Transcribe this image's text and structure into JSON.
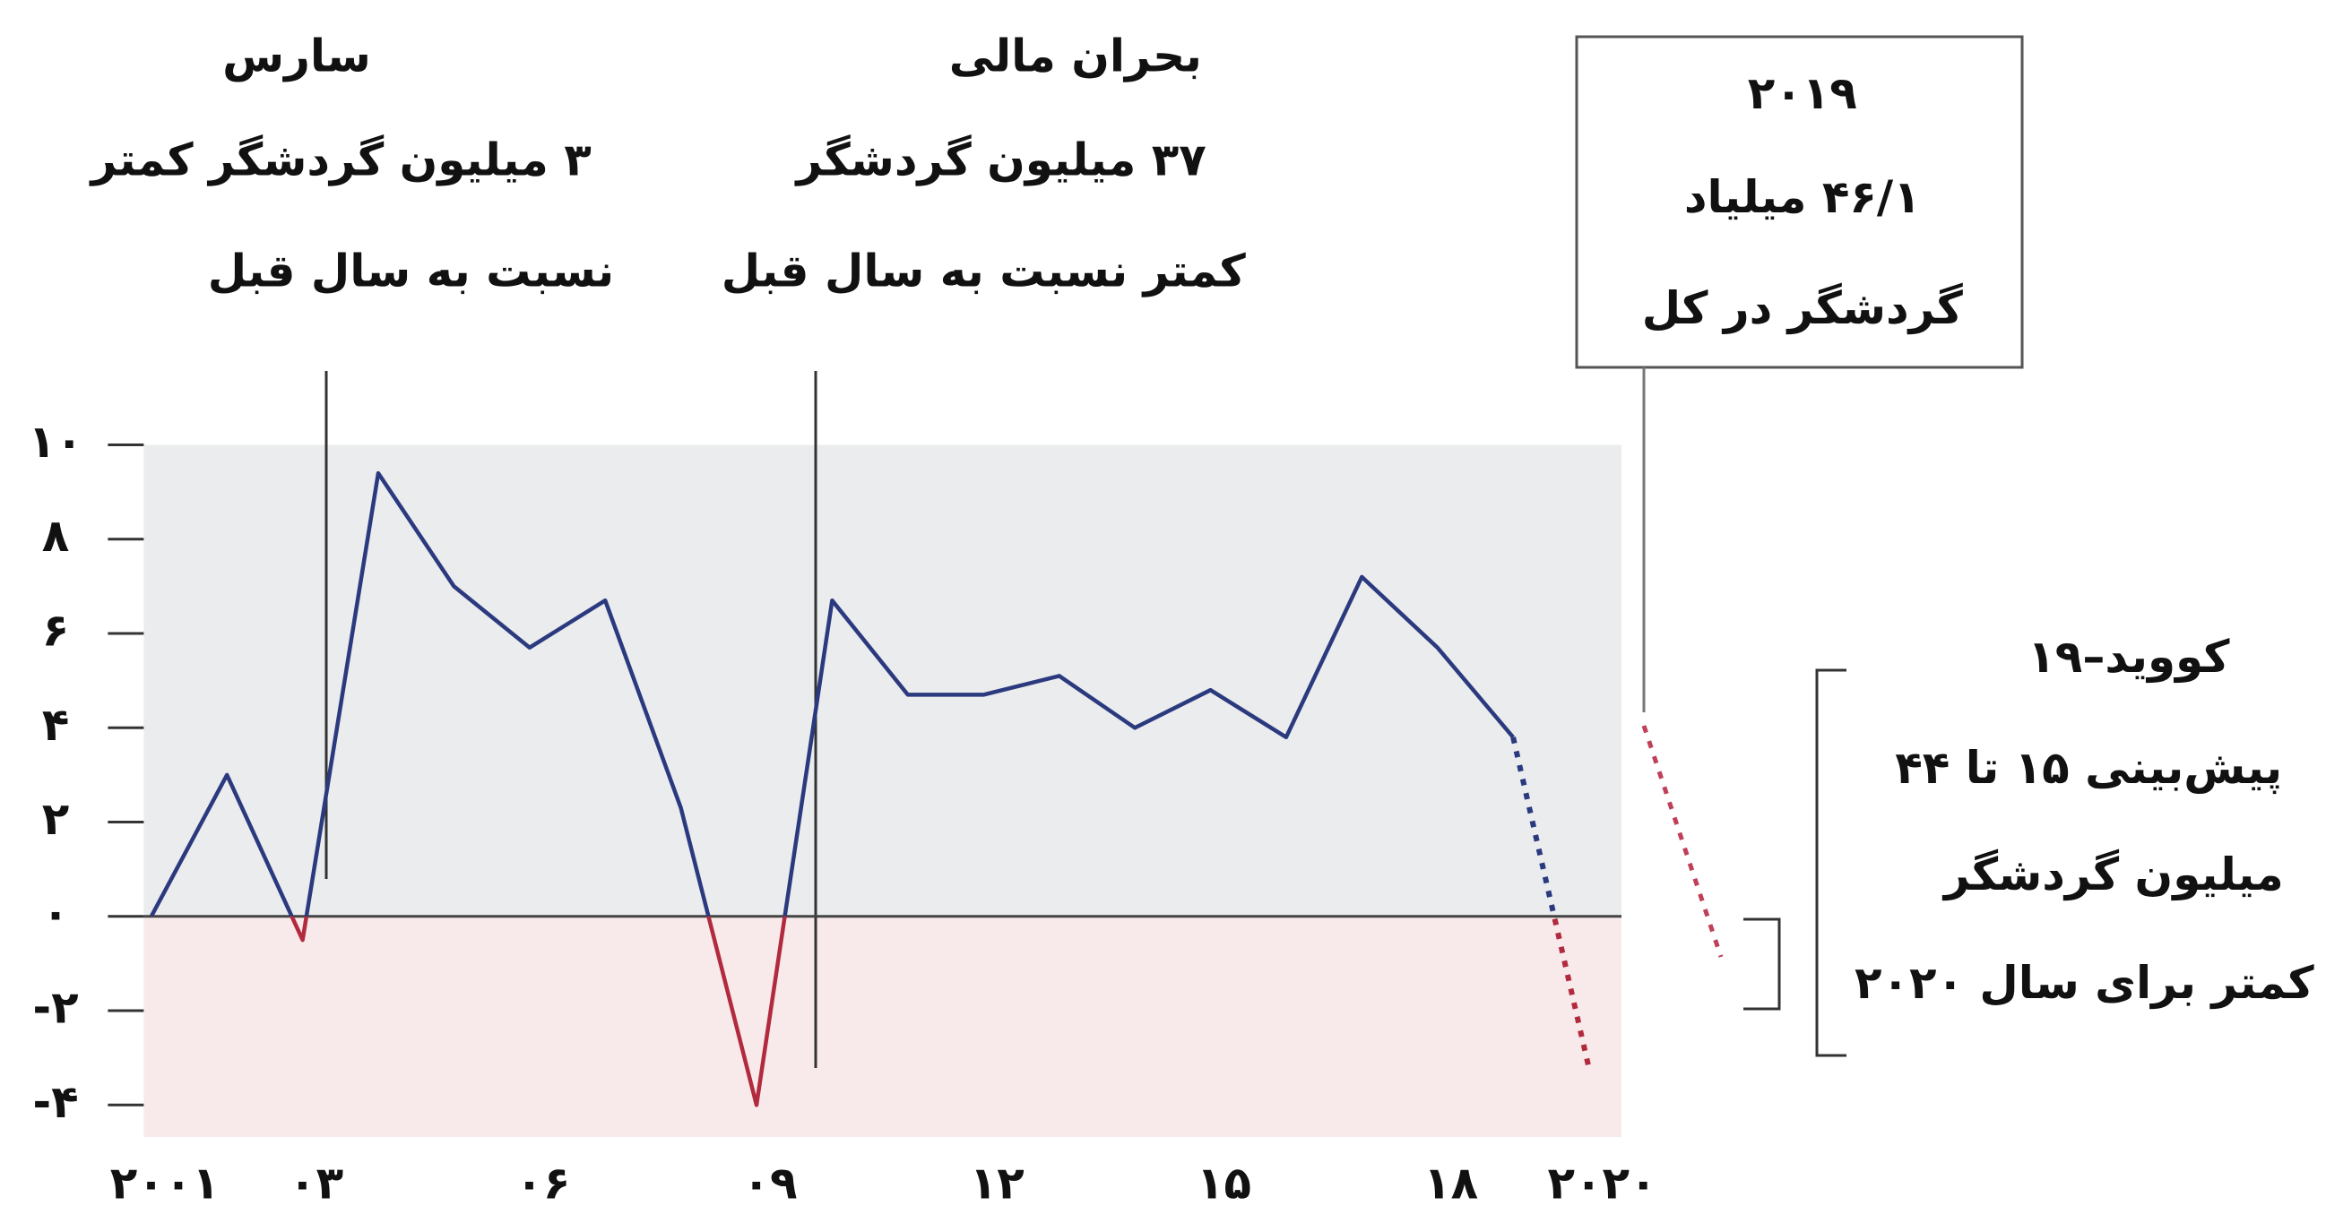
{
  "chart_data": {
    "type": "line",
    "x": [
      2001,
      2002,
      2003,
      2004,
      2005,
      2006,
      2007,
      2008,
      2009,
      2010,
      2011,
      2012,
      2013,
      2014,
      2015,
      2016,
      2017,
      2018,
      2019,
      2020
    ],
    "series": [
      {
        "color": "#2b3a7f",
        "values": [
          0,
          3.0,
          -0.5,
          9.4,
          7.0,
          5.7,
          6.7,
          2.3,
          -4,
          6.7,
          4.7,
          4.7,
          5.1,
          4.0,
          4.8,
          3.8,
          7.2,
          5.7,
          3.8,
          null
        ]
      },
      {
        "color": "#2b3a7f",
        "dashed": true,
        "values": [
          null,
          null,
          null,
          null,
          null,
          null,
          null,
          null,
          null,
          null,
          null,
          null,
          null,
          null,
          null,
          null,
          null,
          null,
          3.8,
          -3.2
        ]
      }
    ],
    "negative_color": "#b22a3e",
    "xlim": [
      2000.9,
      2020.6
    ],
    "xticks": [
      {
        "value": 2001,
        "label": "۲۰۰۱"
      },
      {
        "value": 2003,
        "label": "۰۳"
      },
      {
        "value": 2006,
        "label": "۰۶"
      },
      {
        "value": 2009,
        "label": "۰۹"
      },
      {
        "value": 2012,
        "label": "۱۲"
      },
      {
        "value": 2015,
        "label": "۱۵"
      },
      {
        "value": 2018,
        "label": "۱۸"
      },
      {
        "value": 2020,
        "label": "۲۰۲۰"
      }
    ],
    "ylim": [
      -4.3,
      10
    ],
    "yticks": [
      {
        "value": 10,
        "label": "۱۰"
      },
      {
        "value": 8,
        "label": "۸"
      },
      {
        "value": 6,
        "label": "۶"
      },
      {
        "value": 4,
        "label": "۴"
      },
      {
        "value": 2,
        "label": "۲"
      },
      {
        "value": 0,
        "label": "۰"
      },
      {
        "value": -2,
        "label": "-۲"
      },
      {
        "value": -4,
        "label": "-۴"
      }
    ],
    "annotations": [
      {
        "lines": [
          "سارس",
          "۳ میلیون گردشگر کمتر",
          "نسبت به سال قبل"
        ]
      },
      {
        "lines": [
          "بحران مالی",
          "۳۷ میلیون گردشگر",
          "کمتر نسبت به سال قبل"
        ]
      },
      {
        "lines": [
          "۲۰۱۹",
          "۴۶/۱ میلیاد",
          "گردشگر در کل"
        ]
      },
      {
        "lines": [
          "کووید–۱۹",
          "پیش‌بینی ۱۵ تا ۴۴",
          "میلیون گردشگر",
          "کمتر برای سال ۲۰۲۰"
        ]
      }
    ]
  }
}
